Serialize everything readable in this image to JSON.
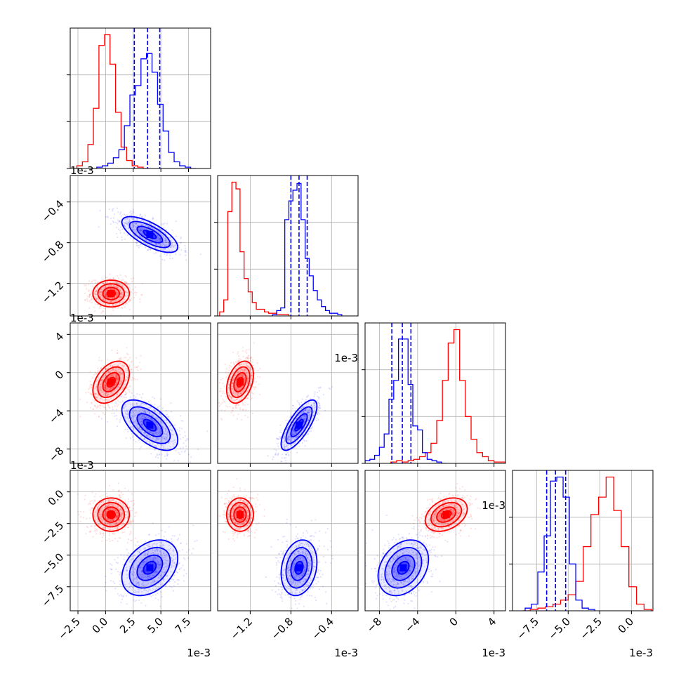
{
  "chart_data": {
    "type": "corner",
    "title": "",
    "offset_text": "1e-3",
    "colors": {
      "series_a": "#ff0000",
      "series_b": "#0000ff",
      "grid": "#b0b0b0"
    },
    "params": [
      {
        "range": [
          -3.2,
          9.5
        ],
        "ticks": [
          -2.5,
          0.0,
          2.5,
          5.0,
          7.5
        ],
        "tick_labels": [
          "−2.5",
          "0.0",
          "2.5",
          "5.0",
          "7.5"
        ]
      },
      {
        "range": [
          -1.52,
          -0.14
        ],
        "ticks": [
          -1.2,
          -0.8,
          -0.4
        ],
        "tick_labels": [
          "−1.2",
          "−0.8",
          "−0.4"
        ]
      },
      {
        "range": [
          -9.5,
          5.2
        ],
        "ticks": [
          -8,
          -4,
          0,
          4
        ],
        "tick_labels": [
          "−8",
          "−4",
          "0",
          "4"
        ]
      },
      {
        "range": [
          -9.4,
          1.7
        ],
        "ticks": [
          -7.5,
          -5.0,
          -2.5,
          0.0
        ],
        "tick_labels": [
          "−7.5",
          "−5.0",
          "−2.5",
          "0.0"
        ]
      }
    ],
    "series": [
      {
        "color": "#ff0000",
        "mean": [
          0.5,
          -1.3,
          -1.0,
          -1.8
        ],
        "std": [
          0.75,
          0.06,
          1.0,
          0.6
        ],
        "hist_edges": [
          [
            -2.6,
            -2.1,
            -1.6,
            -1.1,
            -0.6,
            -0.1,
            0.4,
            0.9,
            1.4,
            1.9,
            2.4,
            2.9,
            3.4,
            3.9
          ],
          [
            -1.5,
            -1.46,
            -1.42,
            -1.38,
            -1.34,
            -1.3,
            -1.26,
            -1.22,
            -1.18,
            -1.14,
            -1.1,
            -1.06,
            -1.02,
            -0.98,
            -0.94,
            -0.9,
            -0.86,
            -0.82,
            -0.78
          ],
          [
            -6.8,
            -6.2,
            -5.6,
            -5.0,
            -4.4,
            -3.8,
            -3.2,
            -2.6,
            -2.0,
            -1.4,
            -0.8,
            -0.2,
            0.4,
            1.0,
            1.6,
            2.2,
            2.8,
            3.4,
            4.0,
            4.6,
            5.2
          ],
          [
            -8.6,
            -8.0,
            -7.4,
            -6.8,
            -6.2,
            -5.6,
            -5.0,
            -4.4,
            -3.8,
            -3.2,
            -2.6,
            -2.0,
            -1.4,
            -0.8,
            -0.2,
            0.4,
            1.0,
            1.6
          ]
        ],
        "hist_counts": [
          [
            0.02,
            0.05,
            0.18,
            0.45,
            0.92,
            1.0,
            0.78,
            0.42,
            0.16,
            0.06,
            0.02,
            0.01,
            0.0
          ],
          [
            0.03,
            0.12,
            0.78,
            1.0,
            0.95,
            0.48,
            0.28,
            0.18,
            0.1,
            0.05,
            0.05,
            0.03,
            0.02,
            0.02,
            0.01,
            0.01,
            0.01,
            0.0
          ],
          [
            0.01,
            0.02,
            0.01,
            0.02,
            0.03,
            0.05,
            0.08,
            0.15,
            0.32,
            0.62,
            0.9,
            1.0,
            0.62,
            0.35,
            0.18,
            0.08,
            0.05,
            0.02,
            0.01,
            0.01
          ],
          [
            0.0,
            0.01,
            0.02,
            0.03,
            0.05,
            0.08,
            0.12,
            0.22,
            0.48,
            0.72,
            0.85,
            1.0,
            0.75,
            0.48,
            0.18,
            0.05,
            0.01
          ]
        ]
      },
      {
        "color": "#0000ff",
        "mean": [
          4.0,
          -0.72,
          -5.5,
          -6.0
        ],
        "std": [
          1.15,
          0.08,
          1.2,
          1.0
        ],
        "quantiles": [
          [
            2.6,
            3.8,
            4.9
          ],
          [
            -0.8,
            -0.72,
            -0.64
          ],
          [
            -6.7,
            -5.6,
            -4.7
          ],
          [
            -6.7,
            -6.0,
            -5.2
          ]
        ],
        "hist_edges": [
          [
            -0.8,
            -0.3,
            0.2,
            0.7,
            1.2,
            1.7,
            2.2,
            2.7,
            3.2,
            3.7,
            4.2,
            4.7,
            5.2,
            5.7,
            6.2,
            6.7,
            7.2,
            7.7,
            8.2
          ],
          [
            -0.98,
            -0.94,
            -0.9,
            -0.86,
            -0.82,
            -0.78,
            -0.74,
            -0.7,
            -0.66,
            -0.62,
            -0.58,
            -0.54,
            -0.5,
            -0.46,
            -0.42,
            -0.38,
            -0.34,
            -0.3
          ],
          [
            -9.5,
            -9.0,
            -8.5,
            -8.0,
            -7.5,
            -7.0,
            -6.5,
            -6.0,
            -5.5,
            -5.0,
            -4.5,
            -4.0,
            -3.5,
            -3.0,
            -2.5,
            -2.0,
            -1.5,
            -1.0
          ],
          [
            -8.4,
            -7.9,
            -7.4,
            -6.9,
            -6.4,
            -5.9,
            -5.4,
            -4.9,
            -4.4,
            -3.9,
            -3.4,
            -2.9
          ]
        ],
        "hist_counts": [
          [
            0.01,
            0.02,
            0.04,
            0.08,
            0.14,
            0.32,
            0.55,
            0.62,
            0.82,
            0.86,
            0.72,
            0.48,
            0.28,
            0.12,
            0.05,
            0.02,
            0.01,
            0.0
          ],
          [
            0.01,
            0.04,
            0.06,
            0.72,
            0.86,
            0.94,
            0.99,
            0.72,
            0.43,
            0.3,
            0.19,
            0.12,
            0.07,
            0.04,
            0.02,
            0.02,
            0.01
          ],
          [
            0.02,
            0.03,
            0.06,
            0.12,
            0.22,
            0.48,
            0.62,
            0.93,
            0.93,
            0.59,
            0.28,
            0.25,
            0.08,
            0.03,
            0.02,
            0.01,
            0.0
          ],
          [
            0.02,
            0.05,
            0.29,
            0.56,
            0.97,
            1.0,
            0.85,
            0.35,
            0.08,
            0.02,
            0.01
          ]
        ]
      }
    ]
  }
}
